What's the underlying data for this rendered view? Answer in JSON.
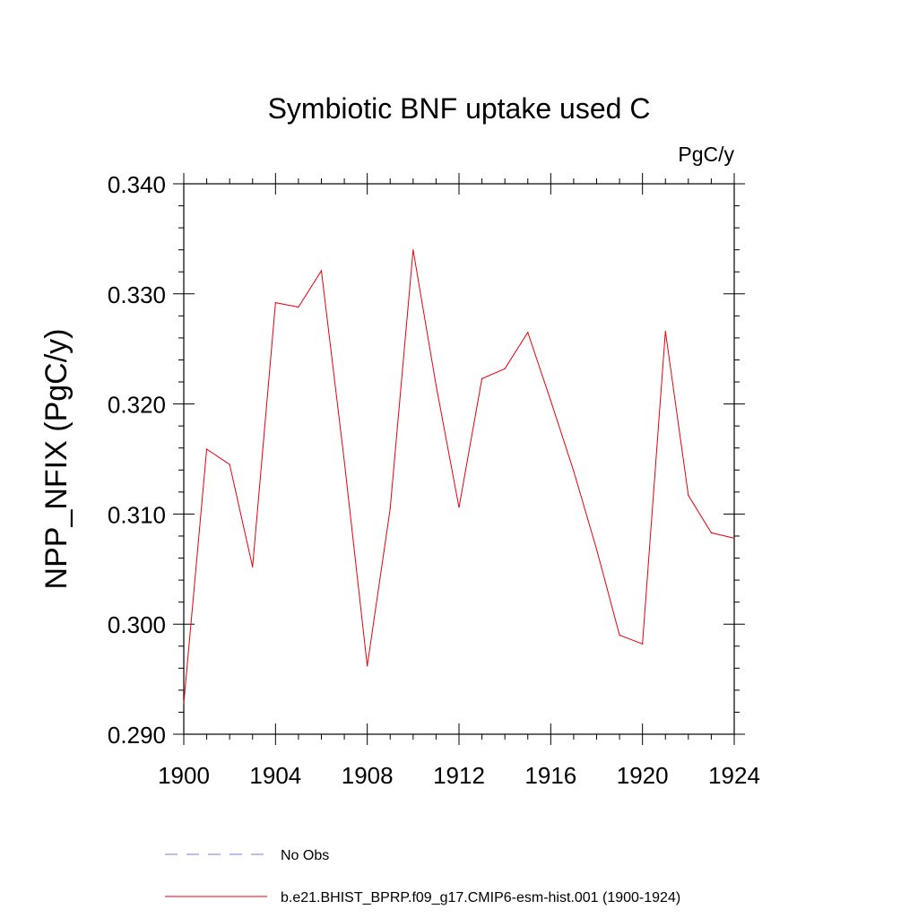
{
  "chart_data": {
    "type": "line",
    "title": "Symbiotic BNF uptake used C",
    "units_label": "PgC/y",
    "ylabel": "NPP_NFIX  (PgC/y)",
    "xlabel": "",
    "xlim": [
      1900,
      1924
    ],
    "ylim": [
      0.29,
      0.34
    ],
    "x_ticks": [
      1900,
      1904,
      1908,
      1912,
      1916,
      1920,
      1924
    ],
    "x_tick_labels": [
      "1900",
      "1904",
      "1908",
      "1912",
      "1916",
      "1920",
      "1924"
    ],
    "y_ticks": [
      0.29,
      0.3,
      0.31,
      0.32,
      0.33,
      0.34
    ],
    "y_tick_labels": [
      "0.290",
      "0.300",
      "0.310",
      "0.320",
      "0.330",
      "0.340"
    ],
    "grid": false,
    "legend_position": "bottom",
    "series": [
      {
        "name": "b.e21.BHIST_BPRP.f09_g17.CMIP6-esm-hist.001 (1900-1924)",
        "color": "#e8000b",
        "style": "solid",
        "x": [
          1900,
          1901,
          1902,
          1903,
          1904,
          1905,
          1906,
          1907,
          1908,
          1909,
          1910,
          1911,
          1912,
          1913,
          1914,
          1915,
          1916,
          1917,
          1918,
          1919,
          1920,
          1921,
          1922,
          1923,
          1924
        ],
        "values": [
          0.2928,
          0.3159,
          0.3145,
          0.3052,
          0.3292,
          0.3288,
          0.3321,
          0.3148,
          0.2962,
          0.3105,
          0.334,
          0.3217,
          0.3106,
          0.3223,
          0.3232,
          0.3265,
          0.3203,
          0.3139,
          0.3068,
          0.299,
          0.2982,
          0.3266,
          0.3117,
          0.3083,
          0.3078
        ]
      }
    ],
    "legend": [
      {
        "label": "No Obs",
        "color": "#7b7bd6",
        "style": "dashed"
      },
      {
        "label": "b.e21.BHIST_BPRP.f09_g17.CMIP6-esm-hist.001 (1900-1924)",
        "color": "#e8000b",
        "style": "solid"
      }
    ]
  }
}
